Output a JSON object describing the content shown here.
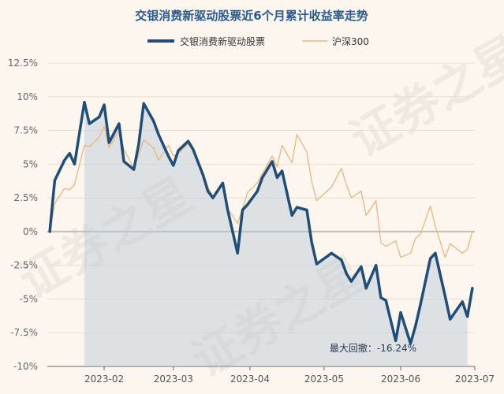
{
  "chart_data": {
    "type": "line",
    "title": "交银消费新驱动股票近6个月累计收益率走势",
    "x": [
      "2023-01-10",
      "2023-01-12",
      "2023-01-16",
      "2023-01-18",
      "2023-01-20",
      "2023-01-24",
      "2023-01-26",
      "2023-01-30",
      "2023-02-01",
      "2023-02-03",
      "2023-02-07",
      "2023-02-09",
      "2023-02-13",
      "2023-02-15",
      "2023-02-17",
      "2023-02-21",
      "2023-02-23",
      "2023-02-27",
      "2023-03-01",
      "2023-03-03",
      "2023-03-07",
      "2023-03-09",
      "2023-03-13",
      "2023-03-15",
      "2023-03-17",
      "2023-03-21",
      "2023-03-23",
      "2023-03-27",
      "2023-03-29",
      "2023-03-31",
      "2023-04-04",
      "2023-04-06",
      "2023-04-10",
      "2023-04-12",
      "2023-04-14",
      "2023-04-18",
      "2023-04-20",
      "2023-04-24",
      "2023-04-26",
      "2023-04-28",
      "2023-05-04",
      "2023-05-08",
      "2023-05-10",
      "2023-05-12",
      "2023-05-16",
      "2023-05-18",
      "2023-05-22",
      "2023-05-24",
      "2023-05-26",
      "2023-05-30",
      "2023-06-01",
      "2023-06-05",
      "2023-06-07",
      "2023-06-09",
      "2023-06-13",
      "2023-06-15",
      "2023-06-19",
      "2023-06-21",
      "2023-06-26",
      "2023-06-28",
      "2023-06-30"
    ],
    "series": [
      {
        "name": "交银消费新驱动股票",
        "color": "#1f4e79",
        "values": [
          0.0,
          3.8,
          5.3,
          5.8,
          5.0,
          9.6,
          8.0,
          8.5,
          9.4,
          6.6,
          8.0,
          5.2,
          4.6,
          6.5,
          9.5,
          8.2,
          7.2,
          5.6,
          4.9,
          6.0,
          6.7,
          6.1,
          4.2,
          3.0,
          2.5,
          3.6,
          1.6,
          -1.6,
          1.6,
          2.0,
          3.0,
          4.0,
          5.2,
          4.0,
          4.5,
          1.2,
          1.8,
          1.6,
          -0.8,
          -2.4,
          -1.6,
          -2.1,
          -3.1,
          -3.7,
          -2.6,
          -4.2,
          -2.5,
          -4.9,
          -5.1,
          -8.1,
          -6.0,
          -8.3,
          -7.0,
          -5.4,
          -2.0,
          -1.6,
          -4.8,
          -6.5,
          -5.2,
          -6.3,
          -4.2
        ]
      },
      {
        "name": "沪深300",
        "color": "#e8b77c",
        "values": [
          0.0,
          2.1,
          3.2,
          3.1,
          3.5,
          6.4,
          6.3,
          7.0,
          7.8,
          6.2,
          7.5,
          6.1,
          4.7,
          5.7,
          6.8,
          6.2,
          5.3,
          6.4,
          5.6,
          5.8,
          6.5,
          6.0,
          4.4,
          3.3,
          2.6,
          3.5,
          1.7,
          0.6,
          1.7,
          2.9,
          3.6,
          4.3,
          5.6,
          4.8,
          6.4,
          5.1,
          7.2,
          5.9,
          3.7,
          2.3,
          3.3,
          4.7,
          3.5,
          2.5,
          3.0,
          1.2,
          2.3,
          -0.8,
          -1.1,
          -0.7,
          -1.9,
          -1.6,
          -0.5,
          -0.2,
          1.9,
          0.4,
          -1.9,
          -0.9,
          -1.6,
          -1.3,
          0.0
        ]
      }
    ],
    "x_tick_labels": [
      "2023-02",
      "2023-03",
      "2023-04",
      "2023-05",
      "2023-06",
      "2023-07"
    ],
    "y_tick_labels": [
      "12.5%",
      "10%",
      "7.5%",
      "5%",
      "2.5%",
      "0%",
      "-2.5%",
      "-5%",
      "-7.5%",
      "-10%"
    ],
    "ylim": [
      -10,
      12.5
    ],
    "xlim": [
      "2023-01-09",
      "2023-07-01"
    ],
    "y_ticks": [
      12.5,
      10,
      7.5,
      5,
      2.5,
      0,
      -2.5,
      -5,
      -7.5,
      -10
    ],
    "x_ticks": [
      "2023-02-01",
      "2023-03-01",
      "2023-04-01",
      "2023-05-01",
      "2023-06-01",
      "2023-07-01"
    ],
    "grid": true,
    "legend_position": "top-center",
    "drawdown_shade": {
      "start": "2023-01-24",
      "end": "2023-06-28"
    },
    "annotation": "最大回撤：-16.24%",
    "watermark": "证券之星"
  }
}
